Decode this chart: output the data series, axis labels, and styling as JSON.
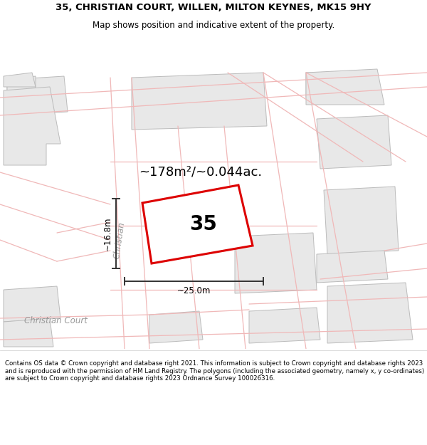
{
  "title_line1": "35, CHRISTIAN COURT, WILLEN, MILTON KEYNES, MK15 9HY",
  "title_line2": "Map shows position and indicative extent of the property.",
  "area_label": "~178m²/~0.044ac.",
  "plot_number": "35",
  "width_label": "~25.0m",
  "height_label": "~16.8m",
  "footer_text": "Contains OS data © Crown copyright and database right 2021. This information is subject to Crown copyright and database rights 2023 and is reproduced with the permission of HM Land Registry. The polygons (including the associated geometry, namely x, y co-ordinates) are subject to Crown copyright and database rights 2023 Ordnance Survey 100026316.",
  "bg_color": "#ffffff",
  "building_fill": "#e8e8e8",
  "building_edge": "#bbbbbb",
  "road_pink": "#f0b8b8",
  "road_dark_pink": "#e89090",
  "plot_edge_color": "#dd0000",
  "plot_fill_color": "#ffffff",
  "dim_color": "#333333",
  "street_color": "#999999",
  "title_fontsize": 9.5,
  "subtitle_fontsize": 8.5,
  "footer_fontsize": 6.2,
  "area_fontsize": 13,
  "plot_num_fontsize": 20,
  "dim_fontsize": 8.5,
  "street_fontsize": 8.5
}
